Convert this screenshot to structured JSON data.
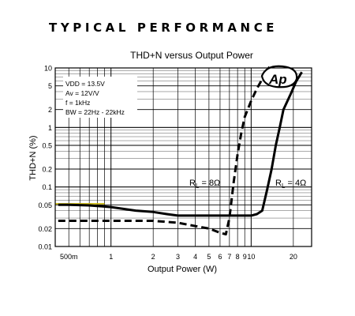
{
  "page": {
    "heading": "TYPICAL PERFORMANCE"
  },
  "chart_data": {
    "type": "line",
    "title": "THD+N versus Output Power",
    "xlabel": "Output Power (W)",
    "ylabel": "THD+N (%)",
    "x_scale": "log",
    "y_scale": "log",
    "xlim": [
      0.4,
      27
    ],
    "ylim": [
      0.01,
      10
    ],
    "grid": true,
    "x_ticks": [
      {
        "value": 0.5,
        "label": "500m"
      },
      {
        "value": 1,
        "label": "1"
      },
      {
        "value": 2,
        "label": "2"
      },
      {
        "value": 3,
        "label": "3"
      },
      {
        "value": 4,
        "label": "4"
      },
      {
        "value": 5,
        "label": "5"
      },
      {
        "value": 6,
        "label": "6"
      },
      {
        "value": 7,
        "label": "7"
      },
      {
        "value": 8,
        "label": "8"
      },
      {
        "value": 9,
        "label": "9"
      },
      {
        "value": 10,
        "label": "10"
      },
      {
        "value": 20,
        "label": "20"
      }
    ],
    "y_ticks": [
      {
        "value": 0.01,
        "label": "0.01"
      },
      {
        "value": 0.02,
        "label": "0.02"
      },
      {
        "value": 0.05,
        "label": "0.05"
      },
      {
        "value": 0.1,
        "label": "0.1"
      },
      {
        "value": 0.2,
        "label": "0.2"
      },
      {
        "value": 0.5,
        "label": "0.5"
      },
      {
        "value": 1,
        "label": "1"
      },
      {
        "value": 2,
        "label": "2"
      },
      {
        "value": 5,
        "label": "5"
      },
      {
        "value": 10,
        "label": "10"
      }
    ],
    "conditions": [
      "VDD = 13.5V",
      "Av = 12V/V",
      "f = 1kHz",
      "BW = 22Hz - 22kHz"
    ],
    "logo": "Ap",
    "series": [
      {
        "label_main": "R",
        "label_sub": "L",
        "label_value": "= 4Ω",
        "style": "solid",
        "color": "#000000",
        "points": [
          [
            0.42,
            0.05
          ],
          [
            0.5,
            0.05
          ],
          [
            0.7,
            0.049
          ],
          [
            1,
            0.046
          ],
          [
            1.5,
            0.04
          ],
          [
            2,
            0.038
          ],
          [
            2.5,
            0.035
          ],
          [
            3,
            0.033
          ],
          [
            4,
            0.033
          ],
          [
            5,
            0.033
          ],
          [
            6,
            0.033
          ],
          [
            7,
            0.033
          ],
          [
            8,
            0.033
          ],
          [
            9,
            0.033
          ],
          [
            10,
            0.033
          ],
          [
            11,
            0.035
          ],
          [
            12,
            0.04
          ],
          [
            13,
            0.09
          ],
          [
            14,
            0.2
          ],
          [
            15,
            0.5
          ],
          [
            16,
            1.0
          ],
          [
            17,
            2.0
          ],
          [
            19,
            3.5
          ],
          [
            21,
            6.0
          ],
          [
            23,
            8.5
          ],
          [
            25,
            11
          ]
        ]
      },
      {
        "label_main": "R",
        "label_sub": "L",
        "label_value": "= 8Ω",
        "style": "dashed",
        "color": "#000000",
        "points": [
          [
            0.42,
            0.027
          ],
          [
            0.6,
            0.027
          ],
          [
            1,
            0.027
          ],
          [
            2,
            0.027
          ],
          [
            3,
            0.025
          ],
          [
            4,
            0.022
          ],
          [
            5,
            0.02
          ],
          [
            6,
            0.017
          ],
          [
            6.6,
            0.016
          ],
          [
            7,
            0.03
          ],
          [
            7.5,
            0.12
          ],
          [
            8,
            0.35
          ],
          [
            8.5,
            0.8
          ],
          [
            9,
            1.5
          ],
          [
            10,
            2.8
          ],
          [
            11,
            4.5
          ],
          [
            12,
            6.5
          ],
          [
            13,
            9.0
          ],
          [
            13.5,
            10.5
          ]
        ]
      }
    ],
    "highlight": {
      "value": 0.05,
      "color": "#c8b400"
    }
  }
}
